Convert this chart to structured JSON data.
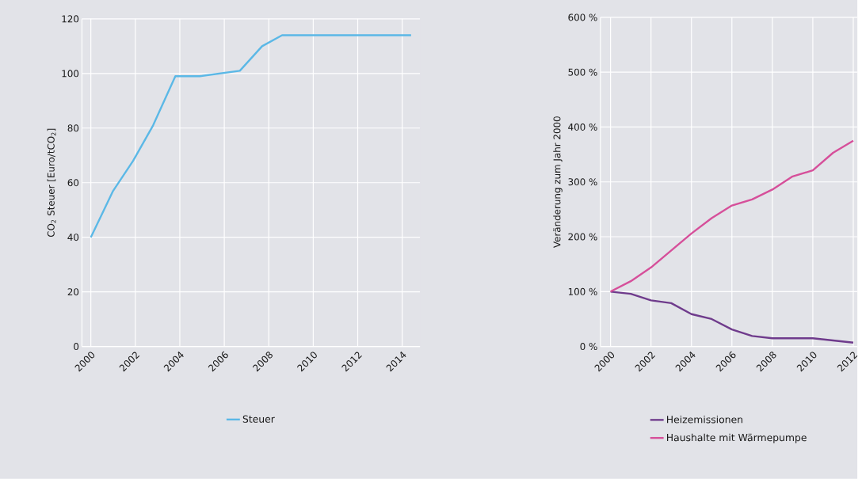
{
  "chart_data": [
    {
      "type": "line",
      "ylabel": "CO$_{2}$ Steuer [Euro/tCO$_{2}$]",
      "xlim": [
        1999.6,
        2014.8
      ],
      "ylim": [
        0,
        120
      ],
      "xticks": [
        2000,
        2002,
        2004,
        2006,
        2008,
        2010,
        2012,
        2014
      ],
      "yticks": [
        0,
        20,
        40,
        60,
        80,
        100,
        120
      ],
      "grid": true,
      "legend": "bottom",
      "series": [
        {
          "name": "Steuer",
          "color": "#5bb8e6",
          "x": [
            2000,
            2001,
            2001.9,
            2002.8,
            2003.8,
            2004.9,
            2006.7,
            2007.7,
            2008.6,
            2014.4
          ],
          "values": [
            40,
            57,
            68,
            81,
            99,
            99,
            101,
            110,
            114,
            114
          ]
        }
      ]
    },
    {
      "type": "line",
      "ylabel": "Veränderung zum Jahr 2000",
      "xlim": [
        1999.5,
        2012.2
      ],
      "ylim": [
        0,
        600
      ],
      "xticks": [
        2000,
        2002,
        2004,
        2006,
        2008,
        2010,
        2012
      ],
      "yticks": [
        {
          "value": 0,
          "label": "0 %"
        },
        {
          "value": 100,
          "label": "100 %"
        },
        {
          "value": 200,
          "label": "200 %"
        },
        {
          "value": 300,
          "label": "300 %"
        },
        {
          "value": 400,
          "label": "400 %"
        },
        {
          "value": 500,
          "label": "500 %"
        },
        {
          "value": 600,
          "label": "600 %"
        }
      ],
      "grid": true,
      "legend": "bottom",
      "series": [
        {
          "name": "Heizemissionen",
          "color": "#6f3b8c",
          "x": [
            2000,
            2001,
            2002,
            2003,
            2004,
            2005,
            2006,
            2007,
            2008,
            2009,
            2010,
            2011,
            2012
          ],
          "values": [
            100,
            96,
            84,
            79,
            59,
            50,
            31,
            19,
            15,
            15,
            15,
            11,
            7
          ]
        },
        {
          "name": "Haushalte mit Wärmepumpe",
          "color": "#d64f9a",
          "x": [
            2000,
            2001,
            2002,
            2003,
            2004,
            2005,
            2006,
            2007,
            2008,
            2009,
            2010,
            2011,
            2012
          ],
          "values": [
            100,
            119,
            144,
            175,
            206,
            234,
            257,
            268,
            286,
            310,
            321,
            353,
            375
          ]
        }
      ]
    }
  ]
}
